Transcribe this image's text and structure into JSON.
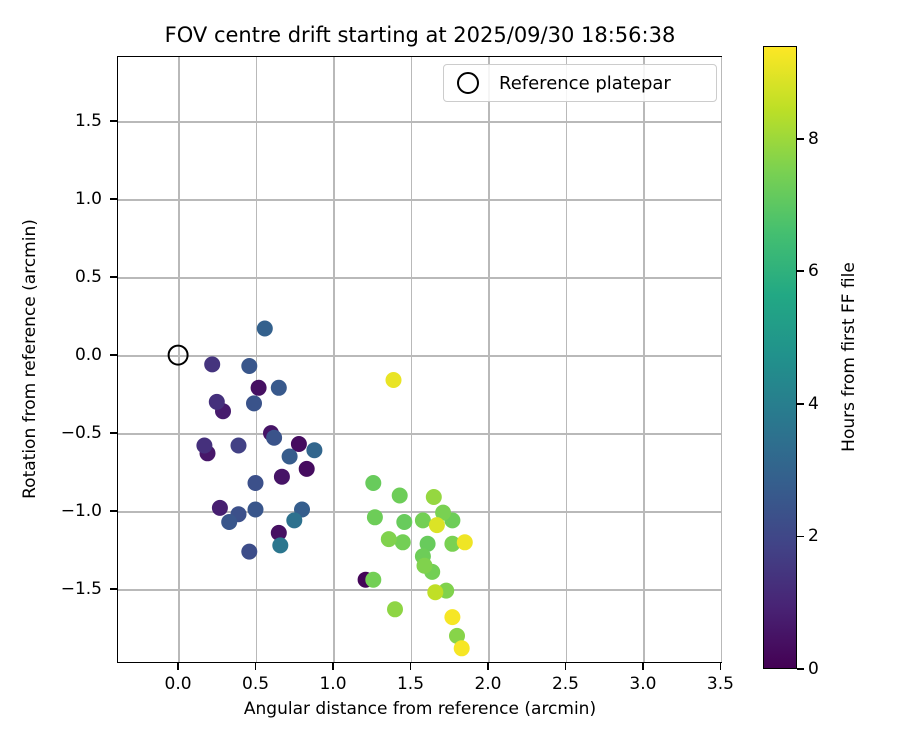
{
  "title": "FOV centre drift starting at 2025/09/30 18:56:38",
  "chart_data": {
    "type": "scatter",
    "title": "FOV centre drift starting at 2025/09/30 18:56:38",
    "xlabel": "Angular distance from reference (arcmin)",
    "ylabel": "Rotation from reference (arcmin)",
    "xlim": [
      -0.394,
      3.51
    ],
    "ylim": [
      -1.974,
      1.917
    ],
    "grid": true,
    "xticks": [
      0.0,
      0.5,
      1.0,
      1.5,
      2.0,
      2.5,
      3.0,
      3.5
    ],
    "xtick_labels": [
      "0.0",
      "0.5",
      "1.0",
      "1.5",
      "2.0",
      "2.5",
      "3.0",
      "3.5"
    ],
    "yticks": [
      1.5,
      1.0,
      0.5,
      0.0,
      -0.5,
      -1.0,
      -1.5
    ],
    "ytick_labels": [
      "1.5",
      "1.0",
      "0.5",
      "0.0",
      "−0.5",
      "−1.0",
      "−1.5"
    ],
    "legend": {
      "label": "Reference platepar",
      "position": "upper right",
      "marker": "open-circle"
    },
    "reference_point": {
      "x": 0.0,
      "y": 0.0
    },
    "colorbar": {
      "label": "Hours from first FF file",
      "vmin": 0,
      "vmax": 9.4,
      "ticks": [
        0,
        2,
        4,
        6,
        8
      ],
      "tick_labels": [
        "0",
        "2",
        "4",
        "6",
        "8"
      ],
      "colormap": "viridis"
    },
    "colormap_stops": [
      [
        0.0,
        "#440154"
      ],
      [
        0.1,
        "#482475"
      ],
      [
        0.2,
        "#414487"
      ],
      [
        0.3,
        "#355f8d"
      ],
      [
        0.4,
        "#2a788e"
      ],
      [
        0.5,
        "#21918c"
      ],
      [
        0.6,
        "#22a884"
      ],
      [
        0.7,
        "#44bf70"
      ],
      [
        0.8,
        "#7ad151"
      ],
      [
        0.9,
        "#bddf26"
      ],
      [
        1.0,
        "#fde725"
      ]
    ],
    "colors": {
      "grid": "#b9b9b9",
      "spine": "#000000",
      "marker_edge": "#000000",
      "background": "#ffffff"
    },
    "points": [
      {
        "x": 0.56,
        "y": 0.17,
        "hours": 2.9
      },
      {
        "x": 0.22,
        "y": -0.06,
        "hours": 1.4
      },
      {
        "x": 0.46,
        "y": -0.07,
        "hours": 2.5
      },
      {
        "x": 0.52,
        "y": -0.21,
        "hours": 0.4
      },
      {
        "x": 0.65,
        "y": -0.21,
        "hours": 2.6
      },
      {
        "x": 0.25,
        "y": -0.3,
        "hours": 1.3
      },
      {
        "x": 0.49,
        "y": -0.31,
        "hours": 2.4
      },
      {
        "x": 0.29,
        "y": -0.36,
        "hours": 0.7
      },
      {
        "x": 0.6,
        "y": -0.5,
        "hours": 0.5
      },
      {
        "x": 0.62,
        "y": -0.53,
        "hours": 2.4
      },
      {
        "x": 0.17,
        "y": -0.58,
        "hours": 1.3
      },
      {
        "x": 0.19,
        "y": -0.63,
        "hours": 0.6
      },
      {
        "x": 0.39,
        "y": -0.58,
        "hours": 1.8
      },
      {
        "x": 0.78,
        "y": -0.57,
        "hours": 0.3
      },
      {
        "x": 0.88,
        "y": -0.61,
        "hours": 3.1
      },
      {
        "x": 0.72,
        "y": -0.65,
        "hours": 2.7
      },
      {
        "x": 0.83,
        "y": -0.73,
        "hours": 0.3
      },
      {
        "x": 0.67,
        "y": -0.78,
        "hours": 0.5
      },
      {
        "x": 0.5,
        "y": -0.82,
        "hours": 2.3
      },
      {
        "x": 0.27,
        "y": -0.98,
        "hours": 0.8
      },
      {
        "x": 0.39,
        "y": -1.02,
        "hours": 2.3
      },
      {
        "x": 0.33,
        "y": -1.07,
        "hours": 2.5
      },
      {
        "x": 0.5,
        "y": -0.99,
        "hours": 2.5
      },
      {
        "x": 0.8,
        "y": -0.99,
        "hours": 2.8
      },
      {
        "x": 0.75,
        "y": -1.06,
        "hours": 3.5
      },
      {
        "x": 0.65,
        "y": -1.14,
        "hours": 0.4
      },
      {
        "x": 0.66,
        "y": -1.22,
        "hours": 3.7
      },
      {
        "x": 0.46,
        "y": -1.26,
        "hours": 2.2
      },
      {
        "x": 1.39,
        "y": -0.16,
        "hours": 9.1
      },
      {
        "x": 1.26,
        "y": -0.82,
        "hours": 7.2
      },
      {
        "x": 1.43,
        "y": -0.9,
        "hours": 7.3
      },
      {
        "x": 1.65,
        "y": -0.91,
        "hours": 7.9
      },
      {
        "x": 1.27,
        "y": -1.04,
        "hours": 7.3
      },
      {
        "x": 1.46,
        "y": -1.07,
        "hours": 7.2
      },
      {
        "x": 1.58,
        "y": -1.06,
        "hours": 7.4
      },
      {
        "x": 1.71,
        "y": -1.01,
        "hours": 7.5
      },
      {
        "x": 1.77,
        "y": -1.06,
        "hours": 7.3
      },
      {
        "x": 1.67,
        "y": -1.09,
        "hours": 8.9
      },
      {
        "x": 1.36,
        "y": -1.18,
        "hours": 7.6
      },
      {
        "x": 1.45,
        "y": -1.2,
        "hours": 7.4
      },
      {
        "x": 1.61,
        "y": -1.21,
        "hours": 7.2
      },
      {
        "x": 1.77,
        "y": -1.21,
        "hours": 7.5
      },
      {
        "x": 1.85,
        "y": -1.2,
        "hours": 9.2
      },
      {
        "x": 1.58,
        "y": -1.29,
        "hours": 7.3
      },
      {
        "x": 1.59,
        "y": -1.35,
        "hours": 7.6
      },
      {
        "x": 1.64,
        "y": -1.39,
        "hours": 7.4
      },
      {
        "x": 1.21,
        "y": -1.44,
        "hours": 0.1
      },
      {
        "x": 1.26,
        "y": -1.44,
        "hours": 7.4
      },
      {
        "x": 1.66,
        "y": -1.52,
        "hours": 8.5
      },
      {
        "x": 1.73,
        "y": -1.51,
        "hours": 7.6
      },
      {
        "x": 1.4,
        "y": -1.63,
        "hours": 7.8
      },
      {
        "x": 1.77,
        "y": -1.68,
        "hours": 9.3
      },
      {
        "x": 1.8,
        "y": -1.8,
        "hours": 7.7
      },
      {
        "x": 1.83,
        "y": -1.88,
        "hours": 9.3
      }
    ]
  }
}
